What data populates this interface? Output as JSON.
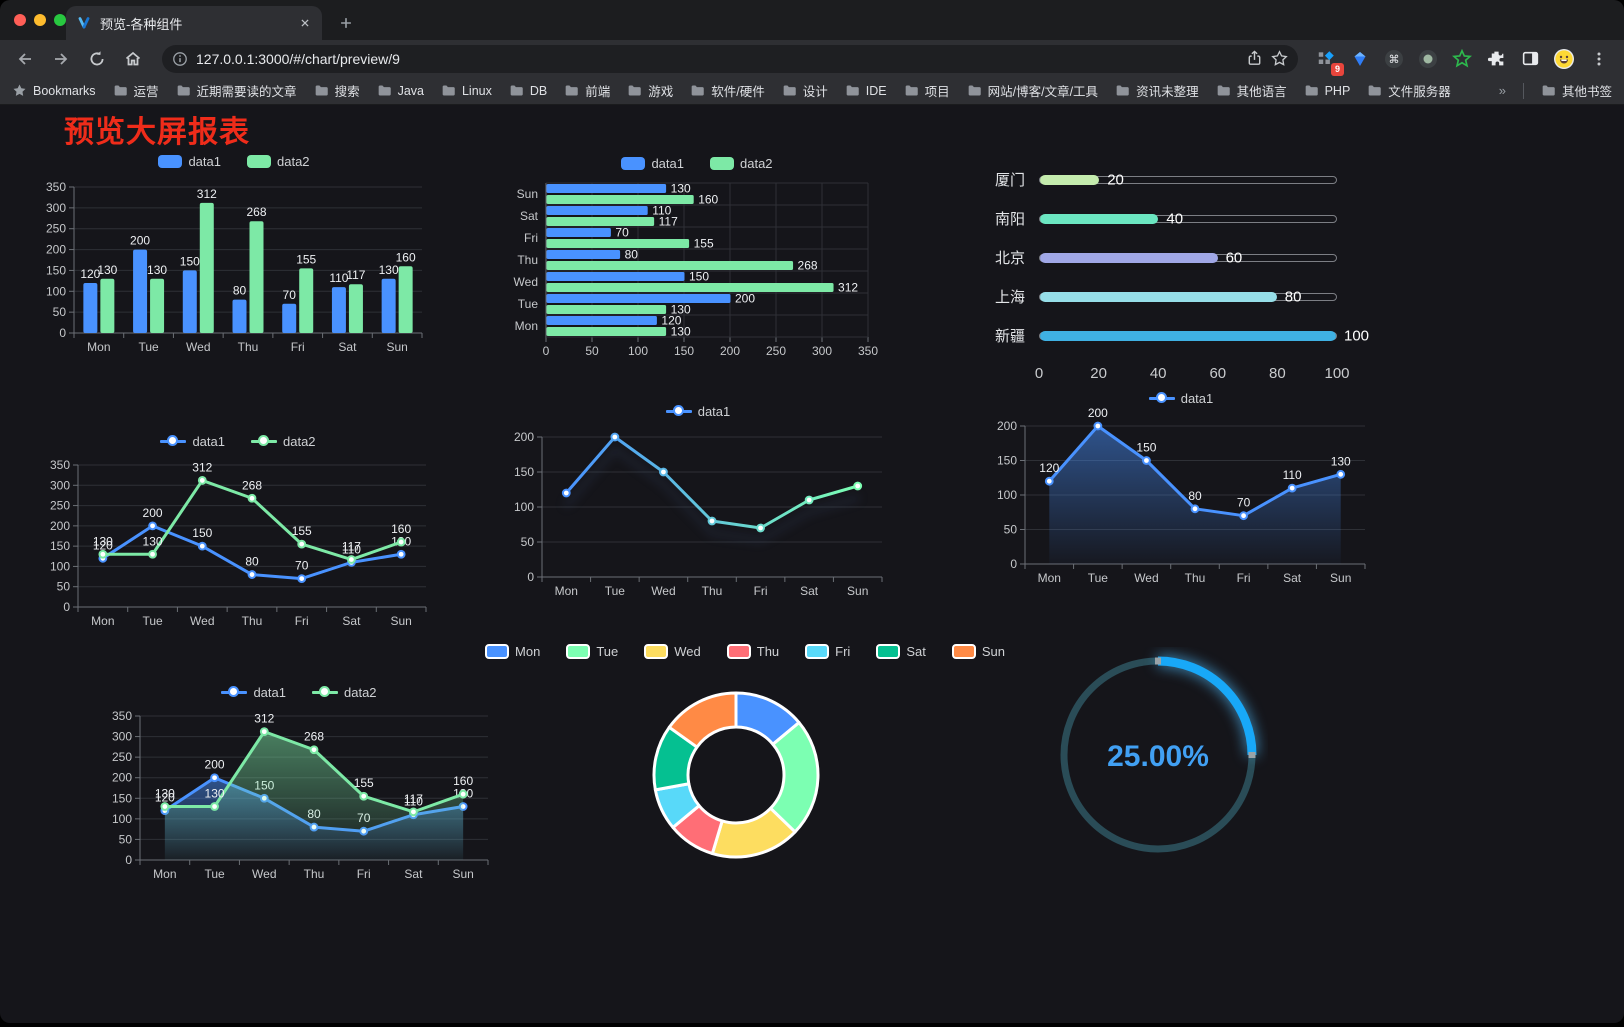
{
  "browser": {
    "tab_title": "预览-各种组件",
    "url": "127.0.0.1:3000/#/chart/preview/9",
    "extension_badge": "9",
    "bookmarks_root_label": "Bookmarks",
    "bookmark_folders": [
      "运营",
      "近期需要读的文章",
      "搜索",
      "Java",
      "Linux",
      "DB",
      "前端",
      "游戏",
      "软件/硬件",
      "设计",
      "IDE",
      "项目",
      "网站/博客/文章/工具",
      "资讯未整理",
      "其他语言",
      "PHP",
      "文件服务器"
    ],
    "bookmarks_overflow": "»",
    "other_bookmarks_label": "其他书签"
  },
  "page": {
    "title": "预览大屏报表",
    "title_color": "#ef2c1a",
    "background": "#15151a"
  },
  "chart_data": [
    {
      "id": "bar-grouped",
      "type": "bar",
      "categories": [
        "Mon",
        "Tue",
        "Wed",
        "Thu",
        "Fri",
        "Sat",
        "Sun"
      ],
      "series": [
        {
          "name": "data1",
          "color": "#4992ff",
          "values": [
            120,
            200,
            150,
            80,
            70,
            110,
            130
          ]
        },
        {
          "name": "data2",
          "color": "#7de9a6",
          "values": [
            130,
            130,
            312,
            268,
            155,
            117,
            160
          ]
        }
      ],
      "ylim": [
        0,
        350
      ],
      "ytick_step": 50,
      "legend_position": "top",
      "grid": true,
      "value_labels": true
    },
    {
      "id": "bar-horizontal",
      "type": "hbar",
      "categories": [
        "Mon",
        "Tue",
        "Wed",
        "Thu",
        "Fri",
        "Sat",
        "Sun"
      ],
      "series": [
        {
          "name": "data1",
          "color": "#4992ff",
          "values": [
            120,
            200,
            150,
            80,
            70,
            110,
            130
          ]
        },
        {
          "name": "data2",
          "color": "#7de9a6",
          "values": [
            130,
            130,
            312,
            268,
            155,
            117,
            160
          ]
        }
      ],
      "xlim": [
        0,
        350
      ],
      "xtick_step": 50,
      "legend_position": "top",
      "grid": true,
      "value_labels": true
    },
    {
      "id": "city-progress",
      "type": "progress",
      "items": [
        {
          "label": "厦门",
          "value": 20,
          "color": "#c4ebad"
        },
        {
          "label": "南阳",
          "value": 40,
          "color": "#6be6c1"
        },
        {
          "label": "北京",
          "value": 60,
          "color": "#a0a7e6"
        },
        {
          "label": "上海",
          "value": 80,
          "color": "#96dee8"
        },
        {
          "label": "新疆",
          "value": 100,
          "color": "#3fb1e3"
        }
      ],
      "xlim": [
        0,
        100
      ],
      "xticks": [
        0,
        20,
        40,
        60,
        80,
        100
      ]
    },
    {
      "id": "line-two",
      "type": "line",
      "categories": [
        "Mon",
        "Tue",
        "Wed",
        "Thu",
        "Fri",
        "Sat",
        "Sun"
      ],
      "series": [
        {
          "name": "data1",
          "color": "#4992ff",
          "values": [
            120,
            200,
            150,
            80,
            70,
            110,
            130
          ]
        },
        {
          "name": "data2",
          "color": "#7de9a6",
          "values": [
            130,
            130,
            312,
            268,
            155,
            117,
            160
          ]
        }
      ],
      "ylim": [
        0,
        350
      ],
      "ytick_step": 50,
      "legend_position": "top",
      "grid": true,
      "value_labels": true
    },
    {
      "id": "line-gradient",
      "type": "line",
      "categories": [
        "Mon",
        "Tue",
        "Wed",
        "Thu",
        "Fri",
        "Sat",
        "Sun"
      ],
      "series": [
        {
          "name": "data1",
          "gradient": [
            "#4992ff",
            "#7cffb2"
          ],
          "values": [
            120,
            200,
            150,
            80,
            70,
            110,
            130
          ]
        }
      ],
      "ylim": [
        0,
        200
      ],
      "ytick_step": 50,
      "legend_position": "top",
      "grid": true,
      "value_labels": false
    },
    {
      "id": "line-area",
      "type": "area",
      "categories": [
        "Mon",
        "Tue",
        "Wed",
        "Thu",
        "Fri",
        "Sat",
        "Sun"
      ],
      "series": [
        {
          "name": "data1",
          "color": "#4992ff",
          "values": [
            120,
            200,
            150,
            80,
            70,
            110,
            130
          ]
        }
      ],
      "ylim": [
        0,
        200
      ],
      "ytick_step": 50,
      "legend_position": "top",
      "grid": true,
      "value_labels": true
    },
    {
      "id": "line-area-two",
      "type": "area",
      "categories": [
        "Mon",
        "Tue",
        "Wed",
        "Thu",
        "Fri",
        "Sat",
        "Sun"
      ],
      "series": [
        {
          "name": "data1",
          "color": "#4992ff",
          "values": [
            120,
            200,
            150,
            80,
            70,
            110,
            130
          ]
        },
        {
          "name": "data2",
          "color": "#7de9a6",
          "values": [
            130,
            130,
            312,
            268,
            155,
            117,
            160
          ]
        }
      ],
      "ylim": [
        0,
        350
      ],
      "ytick_step": 50,
      "legend_position": "top",
      "grid": true,
      "value_labels": true
    },
    {
      "id": "donut",
      "type": "pie",
      "donut": true,
      "legend_position": "top",
      "items": [
        {
          "label": "Mon",
          "value": 120,
          "color": "#4992ff"
        },
        {
          "label": "Tue",
          "value": 200,
          "color": "#7cffb2"
        },
        {
          "label": "Wed",
          "value": 150,
          "color": "#fddd60"
        },
        {
          "label": "Thu",
          "value": 80,
          "color": "#ff6e76"
        },
        {
          "label": "Fri",
          "value": 70,
          "color": "#58d9f9"
        },
        {
          "label": "Sat",
          "value": 110,
          "color": "#05c091"
        },
        {
          "label": "Sun",
          "value": 130,
          "color": "#ff8a45"
        }
      ]
    },
    {
      "id": "gauge",
      "type": "gauge",
      "value": 25,
      "max": 100,
      "display": "25.00%",
      "color": "#18a8f8",
      "track_color": "#2a4c57",
      "text_color": "#41a0f3"
    }
  ]
}
